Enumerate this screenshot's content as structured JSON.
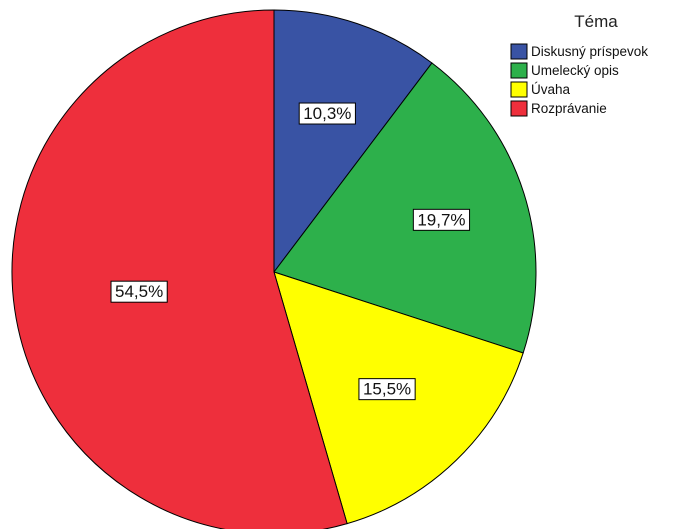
{
  "chart_data": {
    "type": "pie",
    "legend_title": "Téma",
    "legend_position": "top-right",
    "start_angle_deg": 0,
    "direction": "clockwise",
    "slices": [
      {
        "label": "Diskusný príspevok",
        "value": 10.3,
        "value_label": "10,3%",
        "color": "#3953A4"
      },
      {
        "label": "Umelecký opis",
        "value": 19.7,
        "value_label": "19,7%",
        "color": "#2DB04B"
      },
      {
        "label": "Úvaha",
        "value": 15.5,
        "value_label": "15,5%",
        "color": "#FFFF00"
      },
      {
        "label": "Rozprávanie",
        "value": 54.5,
        "value_label": "54,5%",
        "color": "#EE2F3C"
      }
    ]
  }
}
